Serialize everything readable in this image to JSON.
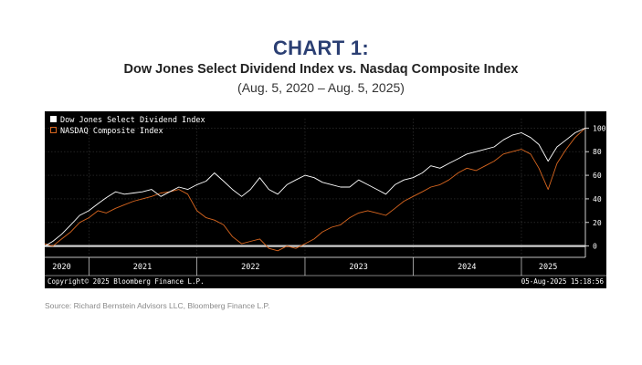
{
  "header": {
    "title": "CHART 1:",
    "subtitle": "Dow Jones Select Dividend Index vs. Nasdaq Composite Index",
    "date_range": "(Aug. 5, 2020 – Aug. 5, 2025)"
  },
  "footer": {
    "source": "Source: Richard Bernstein Advisors LLC, Bloomberg Finance L.P."
  },
  "chart_data": {
    "type": "line",
    "background": "#000000",
    "grid": true,
    "legend_position": "top-left",
    "copyright": "Copyright© 2025 Bloomberg Finance L.P.",
    "timestamp": "05-Aug-2025 15:18:56",
    "x_tick_labels": [
      "2020",
      "2021",
      "2022",
      "2023",
      "2024",
      "2025"
    ],
    "x_tick_dates": [
      "2020-10-01",
      "2021-07-01",
      "2022-07-01",
      "2023-07-01",
      "2024-07-01",
      "2025-04-01"
    ],
    "x_boundaries": [
      "2021-01-01",
      "2022-01-01",
      "2023-01-01",
      "2024-01-01",
      "2025-01-01"
    ],
    "xlim": [
      "2020-08-05",
      "2025-08-05"
    ],
    "y_ticks": [
      0,
      20,
      40,
      60,
      80,
      100
    ],
    "ylim": [
      -8,
      108
    ],
    "baseline": 0,
    "series": [
      {
        "name": "Dow Jones Select Dividend Index",
        "color": "#ffffff",
        "x": [
          "2020-08-05",
          "2020-09-01",
          "2020-10-01",
          "2020-11-01",
          "2020-12-01",
          "2021-01-01",
          "2021-02-01",
          "2021-03-01",
          "2021-04-01",
          "2021-05-01",
          "2021-06-01",
          "2021-07-01",
          "2021-08-01",
          "2021-09-01",
          "2021-10-01",
          "2021-11-01",
          "2021-12-01",
          "2022-01-01",
          "2022-02-01",
          "2022-03-01",
          "2022-04-01",
          "2022-05-01",
          "2022-06-01",
          "2022-07-01",
          "2022-08-01",
          "2022-09-01",
          "2022-10-01",
          "2022-11-01",
          "2022-12-01",
          "2023-01-01",
          "2023-02-01",
          "2023-03-01",
          "2023-04-01",
          "2023-05-01",
          "2023-06-01",
          "2023-07-01",
          "2023-08-01",
          "2023-09-01",
          "2023-10-01",
          "2023-11-01",
          "2023-12-01",
          "2024-01-01",
          "2024-02-01",
          "2024-03-01",
          "2024-04-01",
          "2024-05-01",
          "2024-06-01",
          "2024-07-01",
          "2024-08-01",
          "2024-09-01",
          "2024-10-01",
          "2024-11-01",
          "2024-12-01",
          "2025-01-01",
          "2025-02-01",
          "2025-03-01",
          "2025-04-01",
          "2025-05-01",
          "2025-06-01",
          "2025-07-01",
          "2025-08-05"
        ],
        "y": [
          0,
          4,
          10,
          18,
          26,
          30,
          36,
          41,
          46,
          44,
          45,
          46,
          48,
          42,
          46,
          50,
          48,
          52,
          55,
          62,
          55,
          48,
          42,
          48,
          58,
          48,
          44,
          52,
          56,
          60,
          58,
          54,
          52,
          50,
          50,
          56,
          52,
          48,
          44,
          52,
          56,
          58,
          62,
          68,
          66,
          70,
          74,
          78,
          80,
          82,
          84,
          90,
          94,
          96,
          92,
          86,
          72,
          84,
          90,
          96,
          100
        ]
      },
      {
        "name": "NASDAQ Composite Index",
        "color": "#d9661f",
        "x": [
          "2020-08-05",
          "2020-09-01",
          "2020-10-01",
          "2020-11-01",
          "2020-12-01",
          "2021-01-01",
          "2021-02-01",
          "2021-03-01",
          "2021-04-01",
          "2021-05-01",
          "2021-06-01",
          "2021-07-01",
          "2021-08-01",
          "2021-09-01",
          "2021-10-01",
          "2021-11-01",
          "2021-12-01",
          "2022-01-01",
          "2022-02-01",
          "2022-03-01",
          "2022-04-01",
          "2022-05-01",
          "2022-06-01",
          "2022-07-01",
          "2022-08-01",
          "2022-09-01",
          "2022-10-01",
          "2022-11-01",
          "2022-12-01",
          "2023-01-01",
          "2023-02-01",
          "2023-03-01",
          "2023-04-01",
          "2023-05-01",
          "2023-06-01",
          "2023-07-01",
          "2023-08-01",
          "2023-09-01",
          "2023-10-01",
          "2023-11-01",
          "2023-12-01",
          "2024-01-01",
          "2024-02-01",
          "2024-03-01",
          "2024-04-01",
          "2024-05-01",
          "2024-06-01",
          "2024-07-01",
          "2024-08-01",
          "2024-09-01",
          "2024-10-01",
          "2024-11-01",
          "2024-12-01",
          "2025-01-01",
          "2025-02-01",
          "2025-03-01",
          "2025-04-01",
          "2025-05-01",
          "2025-06-01",
          "2025-07-01",
          "2025-08-05"
        ],
        "y": [
          2,
          0,
          6,
          12,
          20,
          24,
          30,
          28,
          32,
          35,
          38,
          40,
          42,
          45,
          46,
          48,
          44,
          30,
          24,
          22,
          18,
          8,
          2,
          4,
          6,
          -2,
          -4,
          0,
          -2,
          2,
          6,
          12,
          16,
          18,
          24,
          28,
          30,
          28,
          26,
          32,
          38,
          42,
          46,
          50,
          52,
          56,
          62,
          66,
          64,
          68,
          72,
          78,
          80,
          82,
          78,
          66,
          48,
          70,
          82,
          92,
          100
        ]
      }
    ]
  }
}
